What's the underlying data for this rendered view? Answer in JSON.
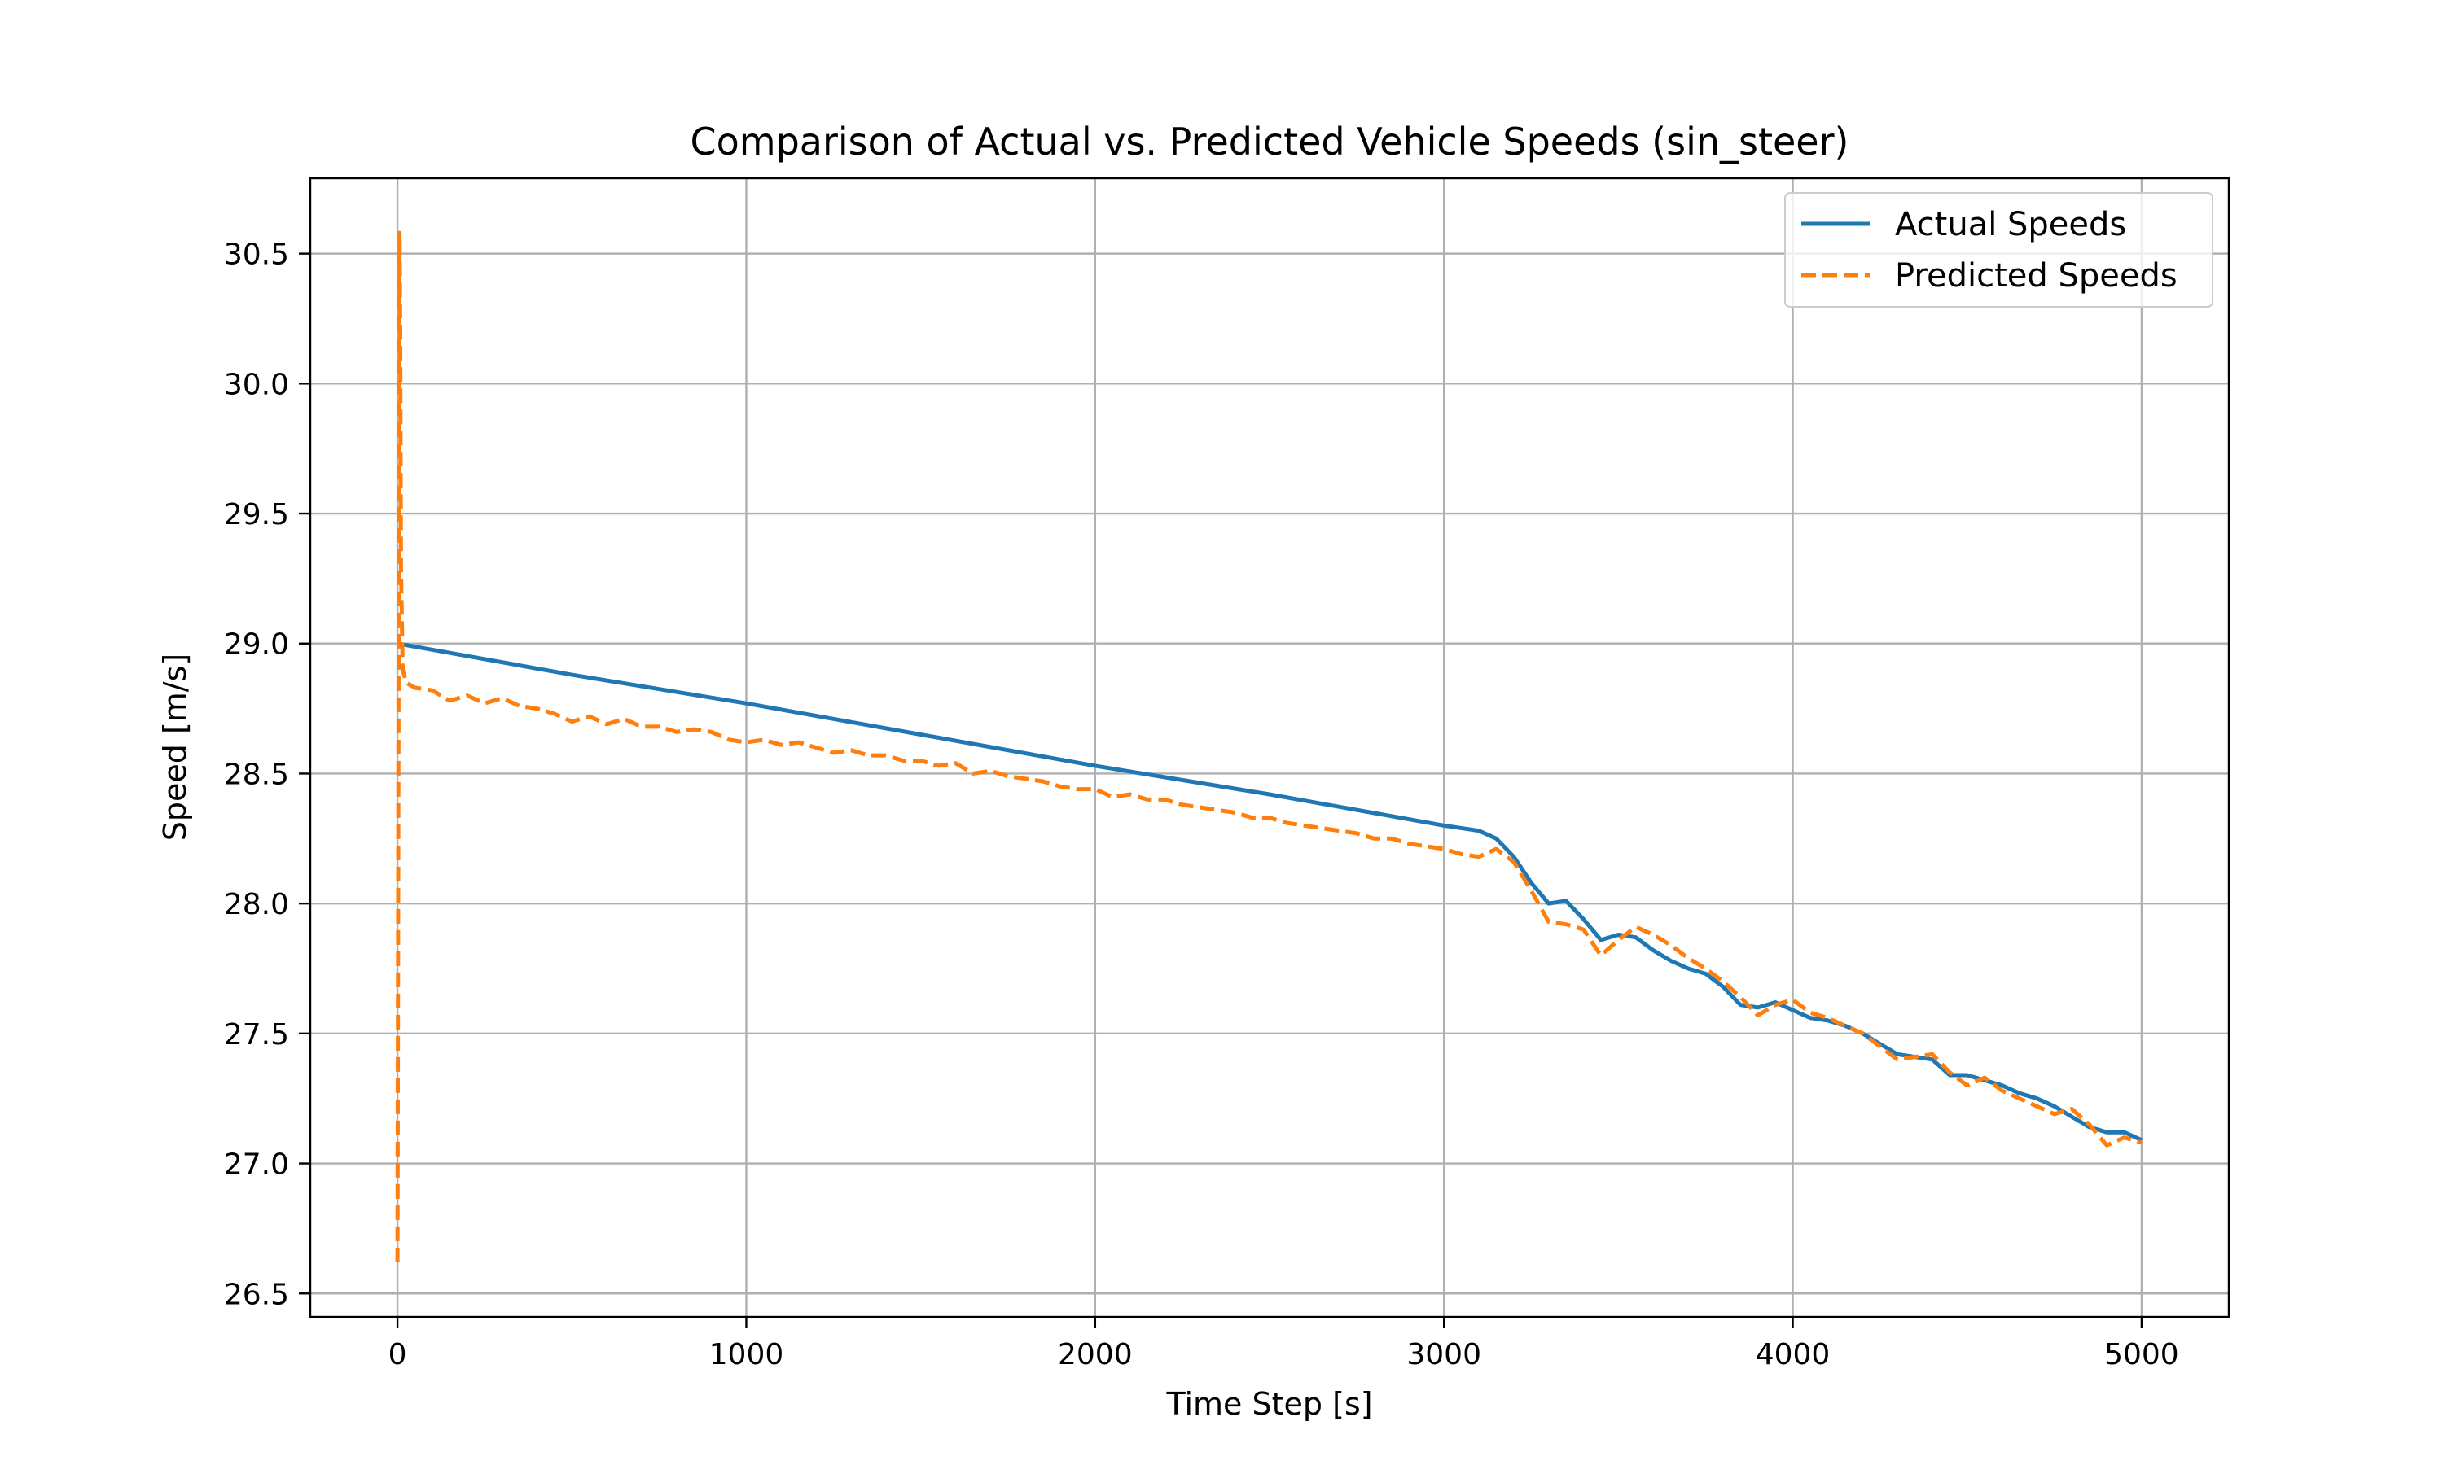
{
  "chart_data": {
    "type": "line",
    "title": "Comparison of Actual vs. Predicted Vehicle Speeds (sin_steer)",
    "xlabel": "Time Step [s]",
    "ylabel": "Speed [m/s]",
    "xlim": [
      -250,
      5250
    ],
    "ylim": [
      26.41,
      30.79
    ],
    "xticks": [
      0,
      1000,
      2000,
      3000,
      4000,
      5000
    ],
    "xtick_labels": [
      "0",
      "1000",
      "2000",
      "3000",
      "4000",
      "5000"
    ],
    "yticks": [
      26.5,
      27.0,
      27.5,
      28.0,
      28.5,
      29.0,
      29.5,
      30.0,
      30.5
    ],
    "ytick_labels": [
      "26.5",
      "27.0",
      "27.5",
      "28.0",
      "28.5",
      "29.0",
      "29.5",
      "30.0",
      "30.5"
    ],
    "grid": true,
    "legend_position": "top-right",
    "series": [
      {
        "name": "Actual Speeds",
        "color": "#1f77b4",
        "style": "solid",
        "x": [
          0,
          500,
          1000,
          1500,
          2000,
          2500,
          3000,
          3100,
          3150,
          3200,
          3250,
          3300,
          3350,
          3400,
          3450,
          3500,
          3550,
          3600,
          3650,
          3700,
          3750,
          3800,
          3850,
          3900,
          3950,
          4000,
          4050,
          4100,
          4150,
          4200,
          4250,
          4300,
          4350,
          4400,
          4450,
          4500,
          4550,
          4600,
          4650,
          4700,
          4750,
          4800,
          4850,
          4900,
          4950,
          5000
        ],
        "y": [
          29.0,
          28.88,
          28.77,
          28.65,
          28.53,
          28.42,
          28.3,
          28.28,
          28.25,
          28.18,
          28.08,
          28.0,
          28.01,
          27.94,
          27.86,
          27.88,
          27.87,
          27.82,
          27.78,
          27.75,
          27.73,
          27.68,
          27.61,
          27.6,
          27.62,
          27.59,
          27.56,
          27.55,
          27.53,
          27.5,
          27.46,
          27.42,
          27.41,
          27.4,
          27.34,
          27.34,
          27.32,
          27.3,
          27.27,
          27.25,
          27.22,
          27.18,
          27.14,
          27.12,
          27.12,
          27.09
        ]
      },
      {
        "name": "Predicted Speeds",
        "color": "#ff7f0e",
        "style": "dashed",
        "x": [
          0,
          2,
          4,
          6,
          8,
          10,
          15,
          25,
          50,
          100,
          150,
          200,
          250,
          300,
          350,
          400,
          450,
          500,
          550,
          600,
          650,
          700,
          750,
          800,
          850,
          900,
          950,
          1000,
          1050,
          1100,
          1150,
          1200,
          1250,
          1300,
          1350,
          1400,
          1450,
          1500,
          1550,
          1600,
          1650,
          1700,
          1750,
          1800,
          1850,
          1900,
          1950,
          2000,
          2050,
          2100,
          2150,
          2200,
          2250,
          2300,
          2350,
          2400,
          2450,
          2500,
          2550,
          2600,
          2650,
          2700,
          2750,
          2800,
          2850,
          2900,
          2950,
          3000,
          3050,
          3100,
          3150,
          3200,
          3250,
          3300,
          3350,
          3400,
          3450,
          3500,
          3550,
          3600,
          3650,
          3700,
          3750,
          3800,
          3850,
          3900,
          3950,
          4000,
          4050,
          4100,
          4150,
          4200,
          4250,
          4300,
          4350,
          4400,
          4450,
          4500,
          4550,
          4600,
          4650,
          4700,
          4750,
          4800,
          4850,
          4900,
          4950,
          5000
        ],
        "y": [
          26.62,
          27.9,
          29.5,
          30.58,
          30.2,
          29.3,
          28.9,
          28.85,
          28.83,
          28.82,
          28.78,
          28.8,
          28.77,
          28.79,
          28.76,
          28.75,
          28.73,
          28.7,
          28.72,
          28.69,
          28.71,
          28.68,
          28.68,
          28.66,
          28.67,
          28.66,
          28.63,
          28.62,
          28.63,
          28.61,
          28.62,
          28.6,
          28.58,
          28.59,
          28.57,
          28.57,
          28.55,
          28.55,
          28.53,
          28.54,
          28.5,
          28.51,
          28.49,
          28.48,
          28.47,
          28.45,
          28.44,
          28.44,
          28.41,
          28.42,
          28.4,
          28.4,
          28.38,
          28.37,
          28.36,
          28.35,
          28.33,
          28.33,
          28.31,
          28.3,
          28.29,
          28.28,
          28.27,
          28.25,
          28.25,
          28.23,
          28.22,
          28.21,
          28.19,
          28.18,
          28.21,
          28.16,
          28.05,
          27.93,
          27.92,
          27.9,
          27.8,
          27.86,
          27.91,
          27.88,
          27.84,
          27.79,
          27.75,
          27.7,
          27.64,
          27.57,
          27.61,
          27.63,
          27.58,
          27.56,
          27.53,
          27.5,
          27.45,
          27.4,
          27.41,
          27.42,
          27.35,
          27.3,
          27.33,
          27.28,
          27.25,
          27.22,
          27.19,
          27.21,
          27.15,
          27.07,
          27.1,
          27.08
        ]
      }
    ]
  }
}
